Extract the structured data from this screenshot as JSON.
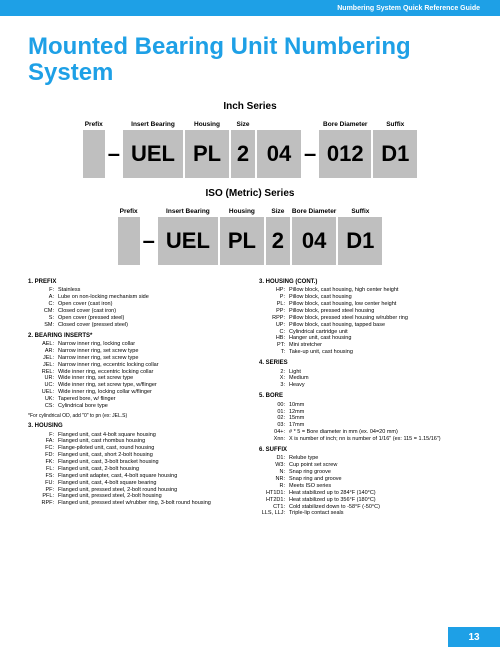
{
  "headerBar": "Numbering System Quick Reference Guide",
  "title": "Mounted Bearing Unit Numbering System",
  "pageNumber": "13",
  "colors": {
    "brand": "#1ea0e6",
    "blockBg": "#bfbfbf",
    "text": "#000000",
    "bg": "#ffffff"
  },
  "inch": {
    "label": "Inch Series",
    "labels": {
      "prefix": "Prefix",
      "insert": "Insert\nBearing",
      "housing": "Housing",
      "size": "Size",
      "diam": "Bore\nDiameter",
      "suffix": "Suffix"
    },
    "vals": {
      "prefix": "",
      "insert": "UEL",
      "housing": "PL",
      "size": "2",
      "diam": "04",
      "suffix": "D1",
      "diam3": "012"
    }
  },
  "iso": {
    "label": "ISO (Metric) Series",
    "labels": {
      "prefix": "Prefix",
      "insert": "Insert\nBearing",
      "housing": "Housing",
      "size": "Size",
      "diam": "Bore\nDiameter",
      "suffix": "Suffix"
    },
    "vals": {
      "prefix": "",
      "insert": "UEL",
      "housing": "PL",
      "size": "2",
      "diam": "04",
      "suffix": "D1"
    }
  },
  "sections": {
    "prefix": {
      "title": "1.   PREFIX",
      "items": [
        [
          "F:",
          "Stainless"
        ],
        [
          "A:",
          "Lube on non-locking mechanism side"
        ],
        [
          "C:",
          "Open cover (cast iron)"
        ],
        [
          "CM:",
          "Closed cover (cast iron)"
        ],
        [
          "S:",
          "Open cover (pressed steel)"
        ],
        [
          "SM:",
          "Closed cover (pressed steel)"
        ]
      ]
    },
    "inserts": {
      "title": "2.   BEARING INSERTS*",
      "items": [
        [
          "AEL:",
          "Narrow inner ring, locking collar"
        ],
        [
          "AR:",
          "Narrow inner ring, set screw type"
        ],
        [
          "JEL:",
          "Narrow inner ring, set screw type"
        ],
        [
          "JEL:",
          "Narrow inner ring, eccentric locking collar"
        ],
        [
          "REL:",
          "Wide inner ring, eccentric locking collar"
        ],
        [
          "UR:",
          "Wide inner ring, set screw type"
        ],
        [
          "UC:",
          "Wide inner ring, set screw type, w/flinger"
        ],
        [
          "UEL:",
          "Wide inner ring, locking collar w/flinger"
        ],
        [
          "UK:",
          "Tapered bore, w/ flinger"
        ],
        [
          "CS:",
          "Cylindrical bore type"
        ]
      ],
      "footnote": "*For cylindrical OD, add \"0\" to pn (ex: JEL.S)"
    },
    "housing": {
      "title": "3.   HOUSING",
      "items": [
        [
          "F:",
          "Flanged unit, cast 4-bolt square housing"
        ],
        [
          "FA:",
          "Flanged unit, cast rhombus housing"
        ],
        [
          "FC:",
          "Flange-piloted unit, cast, round housing"
        ],
        [
          "FD:",
          "Flanged unit, cast, short 2-bolt housing"
        ],
        [
          "FK:",
          "Flanged unit, cast, 3-bolt bracket housing"
        ],
        [
          "FL:",
          "Flanged unit, cast, 2-bolt housing"
        ],
        [
          "FS:",
          "Flanged unit adapter, cast, 4-bolt square housing"
        ],
        [
          "FU:",
          "Flanged unit, cast, 4-bolt square bearing"
        ],
        [
          "PF:",
          "Flanged unit, pressed steel, 2-bolt round housing"
        ],
        [
          "PFL:",
          "Flanged unit, pressed steel, 2-bolt housing"
        ],
        [
          "RPF:",
          "Flanged unit, pressed steel w/rubber ring, 3-bolt round housing"
        ]
      ]
    },
    "housingCont": {
      "title": "3.   HOUSING (CONT.)",
      "items": [
        [
          "HP:",
          "Pillow block, cast housing, high center height"
        ],
        [
          "P:",
          "Pillow block, cast housing"
        ],
        [
          "PL:",
          "Pillow block, cast housing, low center height"
        ],
        [
          "PP:",
          "Pillow block, pressed steel housing"
        ],
        [
          "RPP:",
          "Pillow block, pressed steel housing w/rubber ring"
        ],
        [
          "UP:",
          "Pillow block, cast housing, tapped base"
        ],
        [
          "C:",
          "Cylindrical cartridge unit"
        ],
        [
          "HB:",
          "Hanger unit, cast housing"
        ],
        [
          "PT:",
          "Mini stretcher"
        ],
        [
          "T:",
          "Take-up unit, cast housing"
        ]
      ]
    },
    "series": {
      "title": "4.   SERIES",
      "items": [
        [
          "2:",
          "Light"
        ],
        [
          "X:",
          "Medium"
        ],
        [
          "3:",
          "Heavy"
        ]
      ]
    },
    "bore": {
      "title": "5.   BORE",
      "items": [
        [
          "00:",
          "10mm"
        ],
        [
          "01:",
          "12mm"
        ],
        [
          "02:",
          "15mm"
        ],
        [
          "03:",
          "17mm"
        ],
        [
          "04+:",
          "# * 5 = Bore diameter in mm (ex. 04=20 mm)"
        ],
        [
          "Xnn:",
          "X is number of inch; nn is number of 1/16\" (ex: 115 = 1.15/16\")"
        ]
      ]
    },
    "suffix": {
      "title": "6.   SUFFIX",
      "items": [
        [
          "D1:",
          "Relube type"
        ],
        [
          "W3:",
          "Cup point set screw"
        ],
        [
          "N:",
          "Snap ring groove"
        ],
        [
          "NR:",
          "Snap ring and groove"
        ],
        [
          "R:",
          "Meets ISO series"
        ],
        [
          "HT1D1:",
          "Heat stabilized up to 284°F (140°C)"
        ],
        [
          "HT2D1:",
          "Heat stabilized up to 356°F (180°C)"
        ],
        [
          "CT1:",
          "Cold stabilized down to -58°F (-50°C)"
        ],
        [
          "LLS, LLJ:",
          "Triple-lip contact seals"
        ]
      ]
    }
  }
}
